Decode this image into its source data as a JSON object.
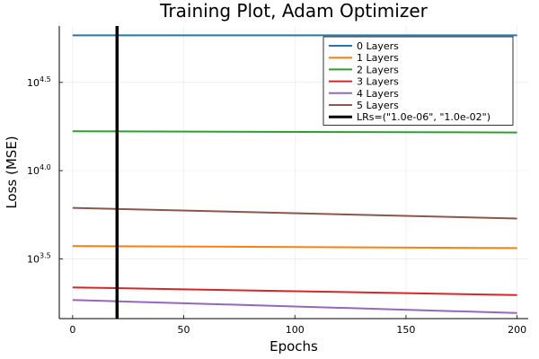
{
  "chart_data": {
    "type": "line",
    "title": "Training Plot, Adam Optimizer",
    "xlabel": "Epochs",
    "ylabel": "Loss (MSE)",
    "x_ticks": [
      0,
      50,
      100,
      150,
      200
    ],
    "y_scale": "log10",
    "y_ticks": [
      {
        "base": "10",
        "exp": "3.5",
        "value": 3162.28
      },
      {
        "base": "10",
        "exp": "4.0",
        "value": 10000
      },
      {
        "base": "10",
        "exp": "4.5",
        "value": 31622.78
      }
    ],
    "xlim": [
      -6,
      205
    ],
    "ylim": [
      1450,
      66000
    ],
    "grid": true,
    "legend_position": "top-right",
    "series": [
      {
        "name": "0 Layers",
        "color": "#1f77b4",
        "x": [
          0,
          200
        ],
        "y": [
          58400,
          58400
        ]
      },
      {
        "name": "1 Layers",
        "color": "#ff7f0e",
        "x": [
          0,
          200
        ],
        "y": [
          3740,
          3640
        ]
      },
      {
        "name": "2 Layers",
        "color": "#2ca02c",
        "x": [
          0,
          200
        ],
        "y": [
          16700,
          16450
        ]
      },
      {
        "name": "3 Layers",
        "color": "#d62728",
        "x": [
          0,
          200
        ],
        "y": [
          2180,
          1970
        ]
      },
      {
        "name": "4 Layers",
        "color": "#9467bd",
        "x": [
          0,
          200
        ],
        "y": [
          1850,
          1560
        ]
      },
      {
        "name": "5 Layers",
        "color": "#8c564b",
        "x": [
          0,
          200
        ],
        "y": [
          6150,
          5350
        ]
      }
    ],
    "vline": {
      "label": "LRs=(\"1.0e-06\", \"1.0e-02\")",
      "x": 20,
      "color": "#000000"
    }
  }
}
